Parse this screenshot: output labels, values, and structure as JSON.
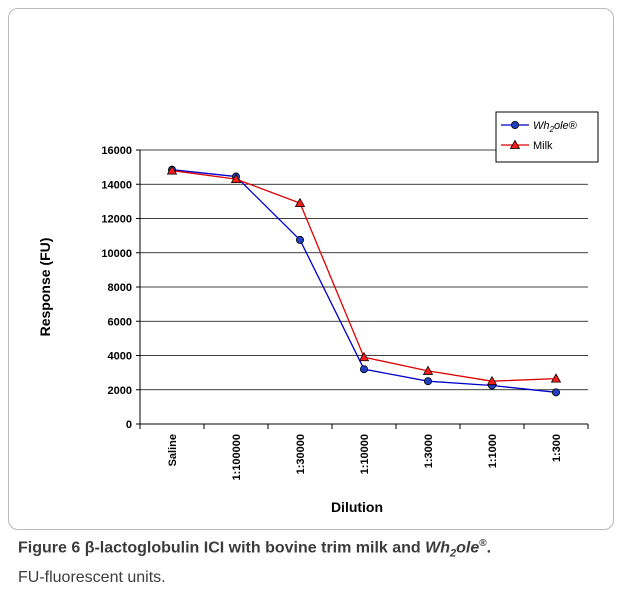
{
  "chart_data": {
    "type": "line",
    "categories": [
      "Saline",
      "1:100000",
      "1:30000",
      "1:10000",
      "1:3000",
      "1:1000",
      "1:300"
    ],
    "series": [
      {
        "name": "Wh2ole®",
        "marker": "circle",
        "color": "#0000cc",
        "fill": "#1f3fbf",
        "values": [
          14850,
          14450,
          10750,
          3200,
          2500,
          2250,
          1850
        ]
      },
      {
        "name": "Milk",
        "marker": "triangle",
        "color": "#dd0000",
        "fill": "#ff1a1a",
        "values": [
          14800,
          14300,
          12900,
          3900,
          3100,
          2500,
          2650
        ]
      }
    ],
    "xlabel": "Dilution",
    "ylabel": "Response (FU)",
    "ylim": [
      0,
      16000
    ],
    "yticks": [
      0,
      2000,
      4000,
      6000,
      8000,
      10000,
      12000,
      14000,
      16000
    ],
    "grid": true,
    "legend": "top-right"
  },
  "legend_labels": {
    "series0": "Wh",
    "series0_sub": "2",
    "series0_tail": "ole®",
    "series1": "Milk"
  },
  "caption": {
    "figure_label": "Figure 6",
    "title_prefix": "β-lactoglobulin ICI with bovine trim milk and ",
    "brand_main": "Wh",
    "brand_sub": "2",
    "brand_tail": "ole",
    "brand_mark": "®",
    "title_end": ".",
    "note": "FU-fluorescent units."
  }
}
